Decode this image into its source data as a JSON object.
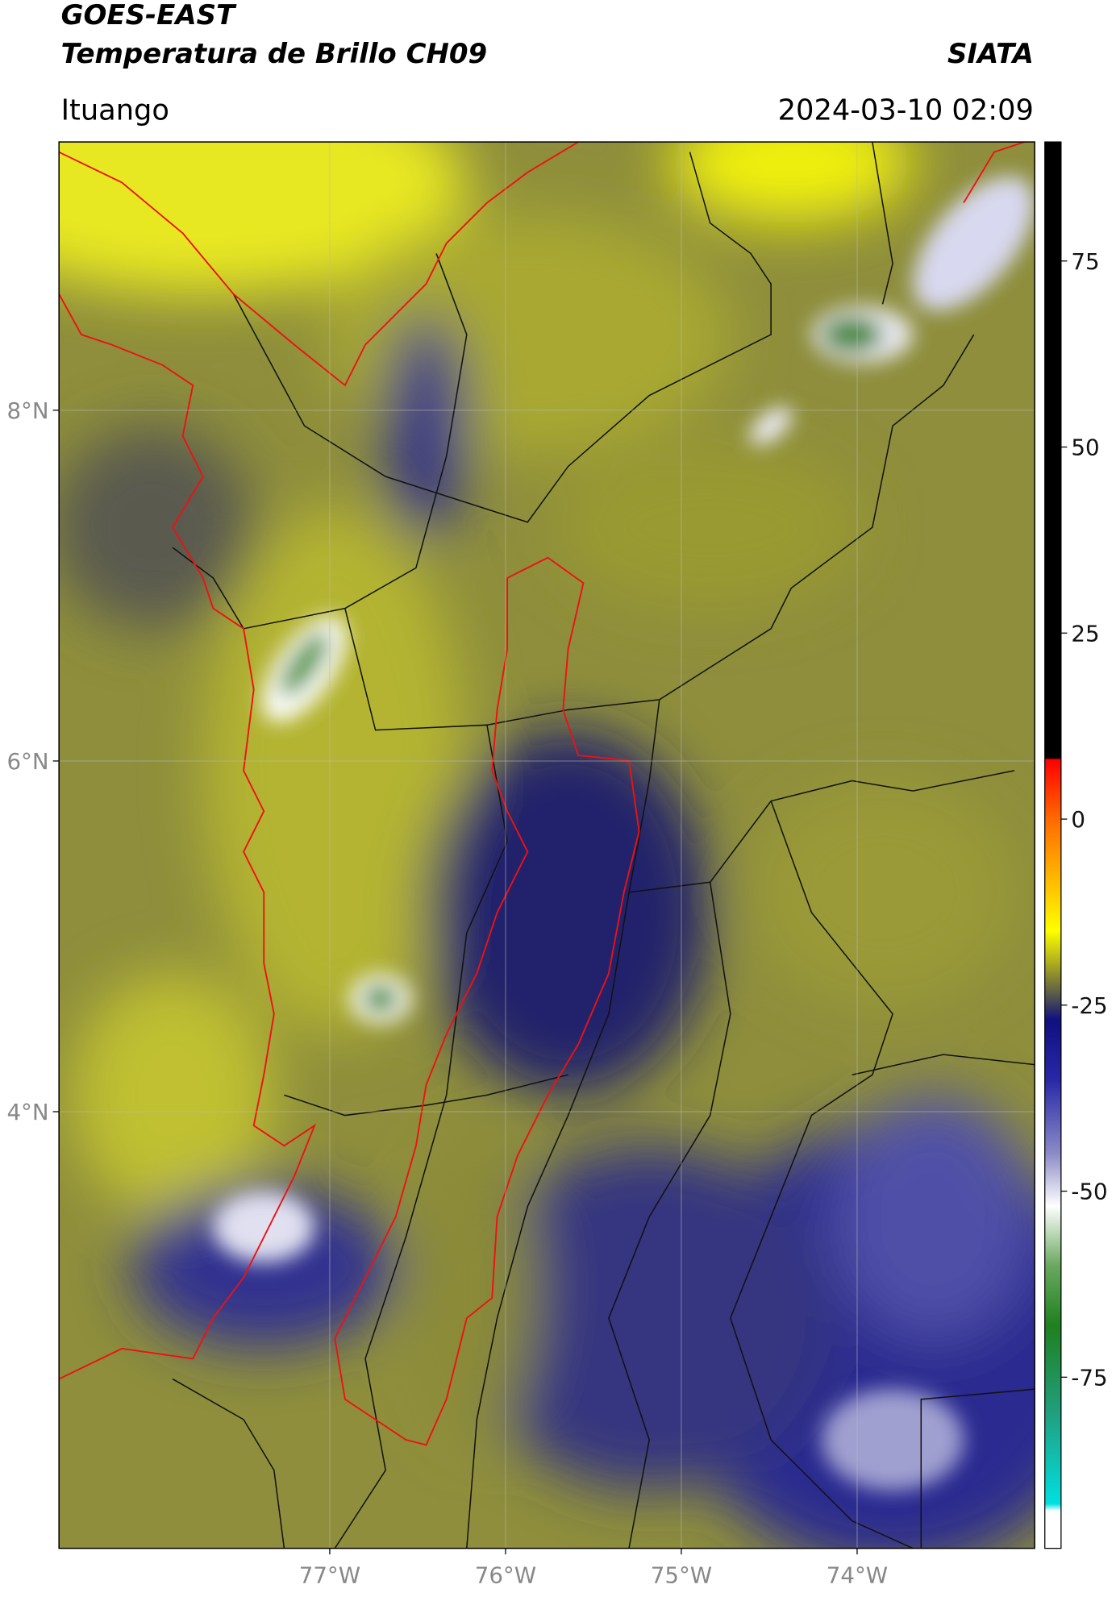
{
  "chart_data": {
    "type": "map",
    "title": "GOES-EAST",
    "subtitle": "Temperatura de Brillo CH09",
    "source": "SIATA",
    "region": "Ituango",
    "datetime": "2024-03-10 02:09",
    "xlim": [
      -78.54,
      -72.99
    ],
    "ylim": [
      1.51,
      9.53
    ],
    "xticks": [
      {
        "value": -77,
        "label": "77°W"
      },
      {
        "value": -76,
        "label": "76°W"
      },
      {
        "value": -75,
        "label": "75°W"
      },
      {
        "value": -74,
        "label": "74°W"
      }
    ],
    "yticks": [
      {
        "value": 8,
        "label": "8°N"
      },
      {
        "value": 6,
        "label": "6°N"
      },
      {
        "value": 4,
        "label": "4°N"
      }
    ],
    "grid": true,
    "colorbar": {
      "lim": [
        -98,
        91
      ],
      "ticks": [
        75,
        50,
        25,
        0,
        -25,
        -50,
        -75
      ],
      "stops": [
        {
          "value": 91,
          "color": "#000000"
        },
        {
          "value": 8.2,
          "color": "#000000"
        },
        {
          "value": 8,
          "color": "#ff0000"
        },
        {
          "value": 0,
          "color": "#ff6a00"
        },
        {
          "value": -10,
          "color": "#ffcc00"
        },
        {
          "value": -15,
          "color": "#ffff00"
        },
        {
          "value": -20,
          "color": "#a0a024"
        },
        {
          "value": -24,
          "color": "#505050"
        },
        {
          "value": -27,
          "color": "#101080"
        },
        {
          "value": -35,
          "color": "#2828a8"
        },
        {
          "value": -45,
          "color": "#8c8cc8"
        },
        {
          "value": -52,
          "color": "#ffffff"
        },
        {
          "value": -60,
          "color": "#6aa860"
        },
        {
          "value": -68,
          "color": "#208020"
        },
        {
          "value": -80,
          "color": "#20a080"
        },
        {
          "value": -92,
          "color": "#00e0e0"
        },
        {
          "value": -93,
          "color": "#ffffff"
        },
        {
          "value": -98,
          "color": "#ffffff"
        }
      ]
    }
  }
}
